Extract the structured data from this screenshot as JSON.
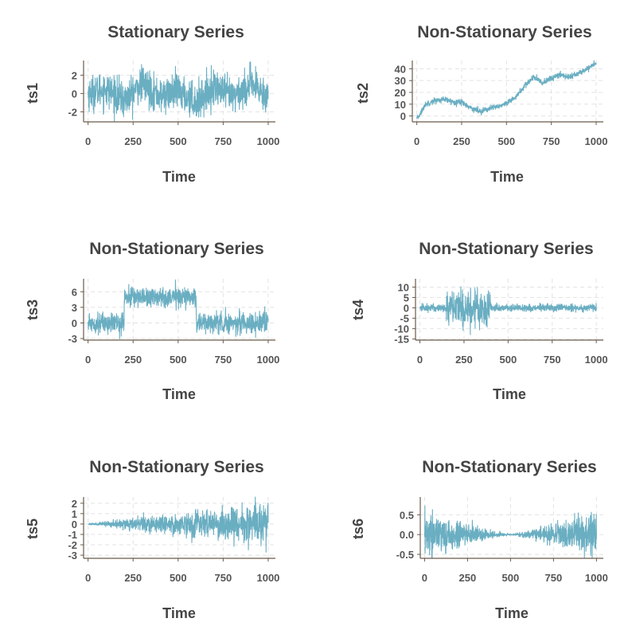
{
  "chart_data": [
    {
      "type": "line",
      "title": "Stationary Series",
      "xlabel": "Time",
      "ylabel": "ts1",
      "x_ticks": [
        0,
        250,
        500,
        750,
        1000
      ],
      "y_ticks": [
        -2,
        0,
        2
      ],
      "xlim": [
        -25,
        1040
      ],
      "ylim": [
        -3.1,
        3.6
      ],
      "grid": true,
      "series": [
        {
          "color": "#6aaec2",
          "model": "white noise, sd 1",
          "x": [
            0,
            100,
            200,
            300,
            400,
            500,
            600,
            700,
            800,
            900,
            1000
          ],
          "y": [
            0.0,
            0.5,
            -0.8,
            1.1,
            -0.3,
            0.2,
            -1.0,
            0.7,
            -0.4,
            0.9,
            -0.2
          ]
        }
      ]
    },
    {
      "type": "line",
      "title": "Non-Stationary Series",
      "xlabel": "Time",
      "ylabel": "ts2",
      "x_ticks": [
        0,
        250,
        500,
        750,
        1000
      ],
      "y_ticks": [
        0,
        10,
        20,
        30,
        40
      ],
      "xlim": [
        -25,
        1040
      ],
      "ylim": [
        -5,
        47
      ],
      "grid": true,
      "series": [
        {
          "color": "#6aaec2",
          "model": "random walk",
          "x": [
            0,
            50,
            100,
            150,
            200,
            250,
            300,
            350,
            400,
            450,
            500,
            550,
            600,
            650,
            700,
            750,
            800,
            850,
            900,
            950,
            1000
          ],
          "y": [
            -3,
            10,
            13,
            14,
            12,
            12,
            7,
            4,
            6,
            8,
            10,
            16,
            25,
            33,
            28,
            32,
            35,
            33,
            36,
            40,
            45
          ]
        }
      ]
    },
    {
      "type": "line",
      "title": "Non-Stationary Series",
      "xlabel": "Time",
      "ylabel": "ts3",
      "x_ticks": [
        0,
        250,
        500,
        750,
        1000
      ],
      "y_ticks": [
        -3,
        0,
        3,
        6
      ],
      "xlim": [
        -25,
        1040
      ],
      "ylim": [
        -3.3,
        8.5
      ],
      "grid": true,
      "series": [
        {
          "color": "#6aaec2",
          "model": "level shift (mean 0 / 5 / 0), sd 1",
          "x": [
            0,
            200,
            201,
            600,
            601,
            1000
          ],
          "y": [
            0,
            0,
            5,
            5,
            0,
            0
          ]
        }
      ]
    },
    {
      "type": "line",
      "title": "Non-Stationary Series",
      "xlabel": "Time",
      "ylabel": "ts4",
      "x_ticks": [
        0,
        250,
        500,
        750,
        1000
      ],
      "y_ticks": [
        -15,
        -10,
        -5,
        0,
        5,
        10
      ],
      "xlim": [
        -25,
        1040
      ],
      "ylim": [
        -15.5,
        14
      ],
      "grid": true,
      "series": [
        {
          "color": "#6aaec2",
          "model": "variance burst between t = 150 and t = 400",
          "x": [
            0,
            150,
            400,
            1000
          ],
          "y": [
            0,
            0,
            0,
            0
          ]
        }
      ]
    },
    {
      "type": "line",
      "title": "Non-Stationary Series",
      "xlabel": "Time",
      "ylabel": "ts5",
      "x_ticks": [
        0,
        250,
        500,
        750,
        1000
      ],
      "y_ticks": [
        -3,
        -2,
        -1,
        0,
        1,
        2
      ],
      "xlim": [
        -25,
        1040
      ],
      "ylim": [
        -3.3,
        2.6
      ],
      "grid": true,
      "series": [
        {
          "color": "#6aaec2",
          "model": "noise with linearly growing amplitude",
          "x": [
            0,
            1000
          ],
          "y": [
            0,
            0
          ]
        }
      ]
    },
    {
      "type": "line",
      "title": "Non-Stationary Series",
      "xlabel": "Time",
      "ylabel": "ts6",
      "x_ticks": [
        0,
        250,
        500,
        750,
        1000
      ],
      "y_ticks": [
        -0.5,
        0.0,
        0.5
      ],
      "y_tick_labels": [
        "-0.5",
        "0.0",
        "0.5"
      ],
      "xlim": [
        -25,
        1040
      ],
      "ylim": [
        -0.6,
        0.95
      ],
      "grid": true,
      "series": [
        {
          "color": "#6aaec2",
          "model": "noise with amplitude shrinking to t = 500 then growing",
          "x": [
            0,
            500,
            1000
          ],
          "y": [
            0,
            0,
            0
          ]
        }
      ]
    }
  ]
}
